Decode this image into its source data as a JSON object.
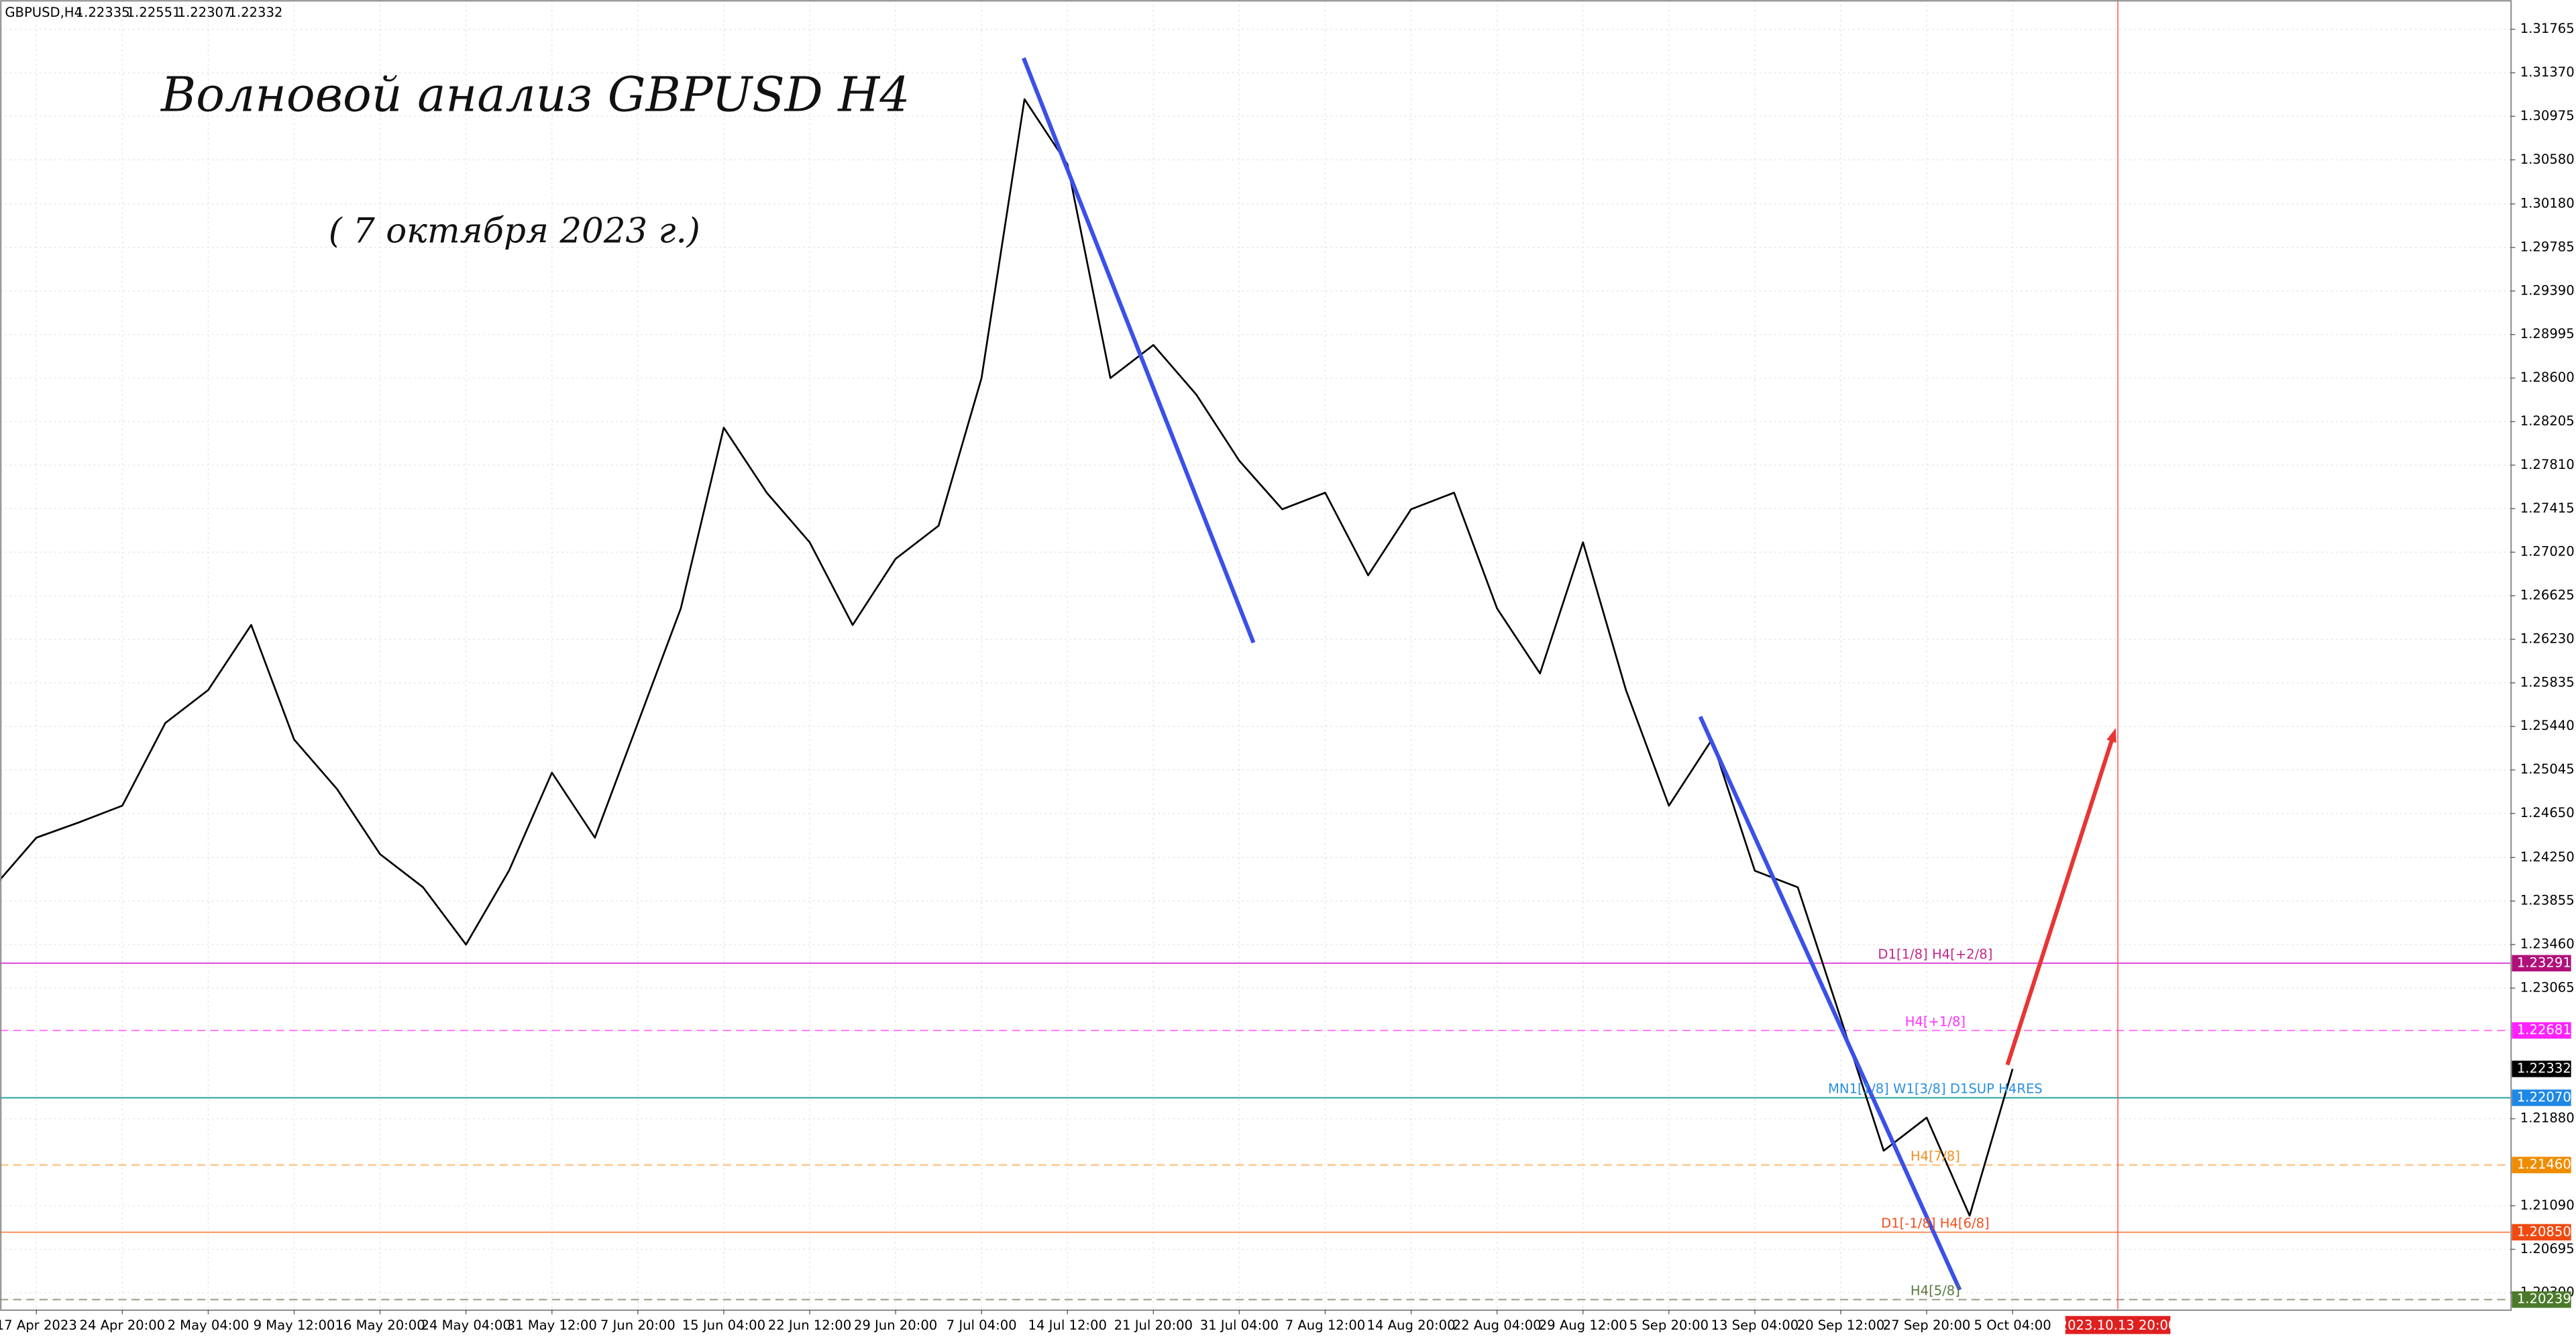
{
  "chart_data": {
    "type": "line",
    "title": "Волновой анализ GBPUSD H4",
    "subtitle": "( 7 октября 2023 г.)",
    "symbol": "GBPUSD,H4",
    "ohlc": [
      1.22335,
      1.22551,
      1.22307,
      1.22332
    ],
    "categories": [
      null,
      "17 Apr 2023",
      null,
      "24 Apr 20:00",
      null,
      "2 May 04:00",
      null,
      "9 May 12:00",
      null,
      "16 May 20:00",
      null,
      "24 May 04:00",
      null,
      "31 May 12:00",
      null,
      "7 Jun 20:00",
      null,
      "15 Jun 04:00",
      null,
      "22 Jun 12:00",
      null,
      "29 Jun 20:00",
      null,
      "7 Jul 04:00",
      null,
      "14 Jul 12:00",
      null,
      "21 Jul 20:00",
      null,
      "31 Jul 04:00",
      null,
      "7 Aug 12:00",
      null,
      "14 Aug 20:00",
      null,
      "22 Aug 04:00",
      null,
      "29 Aug 12:00",
      null,
      "5 Sep 20:00",
      null,
      "13 Sep 04:00",
      null,
      "20 Sep 12:00",
      null,
      "27 Sep 20:00",
      null,
      "5 Oct 04:00"
    ],
    "values": [
      1.2398,
      1.2443,
      1.2457,
      1.2472,
      1.2547,
      1.2577,
      1.2636,
      1.2532,
      1.2487,
      1.2428,
      1.2398,
      1.2346,
      1.2413,
      1.2502,
      1.2443,
      1.2547,
      1.2651,
      1.2815,
      1.2756,
      1.2711,
      1.2636,
      1.2696,
      1.2726,
      1.286,
      1.3113,
      1.3054,
      1.286,
      1.289,
      1.2845,
      1.2785,
      1.2741,
      1.2756,
      1.2681,
      1.2741,
      1.2756,
      1.2651,
      1.2592,
      1.2711,
      1.2577,
      1.2472,
      1.2532,
      1.2413,
      1.2398,
      1.2279,
      1.2159,
      1.2189,
      1.21,
      1.22332
    ],
    "color": "#000000",
    "ylim": [
      1.2015,
      1.3203
    ],
    "yticks": [
      1.31765,
      {
        "value": 1.3137,
        "label": "1.31370"
      },
      1.30975,
      {
        "value": 1.3058,
        "label": "1.30580"
      },
      {
        "value": 1.3018,
        "label": "1.30180"
      },
      1.29785,
      {
        "value": 1.2939,
        "label": "1.29390"
      },
      1.28995,
      {
        "value": 1.286,
        "label": "1.28600"
      },
      1.28205,
      {
        "value": 1.2781,
        "label": "1.27810"
      },
      1.27415,
      {
        "value": 1.2702,
        "label": "1.27020"
      },
      1.26625,
      {
        "value": 1.2623,
        "label": "1.26230"
      },
      1.25835,
      {
        "value": 1.2544,
        "label": "1.25440"
      },
      1.25045,
      {
        "value": 1.2465,
        "label": "1.24650"
      },
      {
        "value": 1.2425,
        "label": "1.24250"
      },
      1.23855,
      {
        "value": 1.2346,
        "label": "1.23460"
      },
      1.23065,
      {
        "value": 1.2188,
        "label": "1.21880"
      },
      {
        "value": 1.2109,
        "label": "1.21090"
      },
      1.20695,
      {
        "value": 1.203,
        "label": "1.20300"
      }
    ],
    "grid": true,
    "current_price": 1.22332,
    "levels": [
      {
        "price": 1.23291,
        "price_label": "1.23291",
        "text": "D1[1/8] H4[+2/8]",
        "color": "#e050e0",
        "box_color": "#b0107a",
        "text_color": "#c0288a",
        "dashed": false
      },
      {
        "price": 1.22681,
        "price_label": "1.22681",
        "text": "H4[+1/8]",
        "color": "#ff80ff",
        "box_color": "#ff20ff",
        "text_color": "#ff30ff",
        "dashed": true
      },
      {
        "price": 1.2207,
        "price_label": "1.22070",
        "text": "MN1[1/8] W1[3/8] D1SUP H4RES",
        "color": "#30a8a8",
        "box_color": "#1e88e5",
        "text_color": "#2a90e0",
        "dashed": false
      },
      {
        "price": 1.2146,
        "price_label": "1.21460",
        "text": "H4[7/8]",
        "color": "#ffc080",
        "box_color": "#f08c00",
        "text_color": "#f09020",
        "dashed": true
      },
      {
        "price": 1.2085,
        "price_label": "1.20850",
        "text": "D1[-1/8] H4[6/8]",
        "color": "#ff9a70",
        "box_color": "#f04a10",
        "text_color": "#f05020",
        "dashed": false
      },
      {
        "price": 1.20239,
        "price_label": "1.20239",
        "text": "H4[5/8]",
        "color": "#a0a890",
        "box_color": "#4a7a2a",
        "text_color": "#5a7a3a",
        "dashed": true
      }
    ],
    "trend_lines": [
      {
        "color": "#3a50e8",
        "x": [
          23.98,
          29.33
        ],
        "y": [
          1.31504,
          1.26199
        ]
      },
      {
        "color": "#3a50e8",
        "x": [
          39.73,
          45.77
        ],
        "y": [
          1.25528,
          1.20327
        ]
      }
    ],
    "arrow": {
      "color": "#e83535",
      "x": [
        46.88,
        49.4
      ],
      "y": [
        1.22369,
        1.25424
      ]
    },
    "time_marker": {
      "x": 49.45,
      "label": "2023.10.13 20:00",
      "color": "#ff5050"
    }
  }
}
